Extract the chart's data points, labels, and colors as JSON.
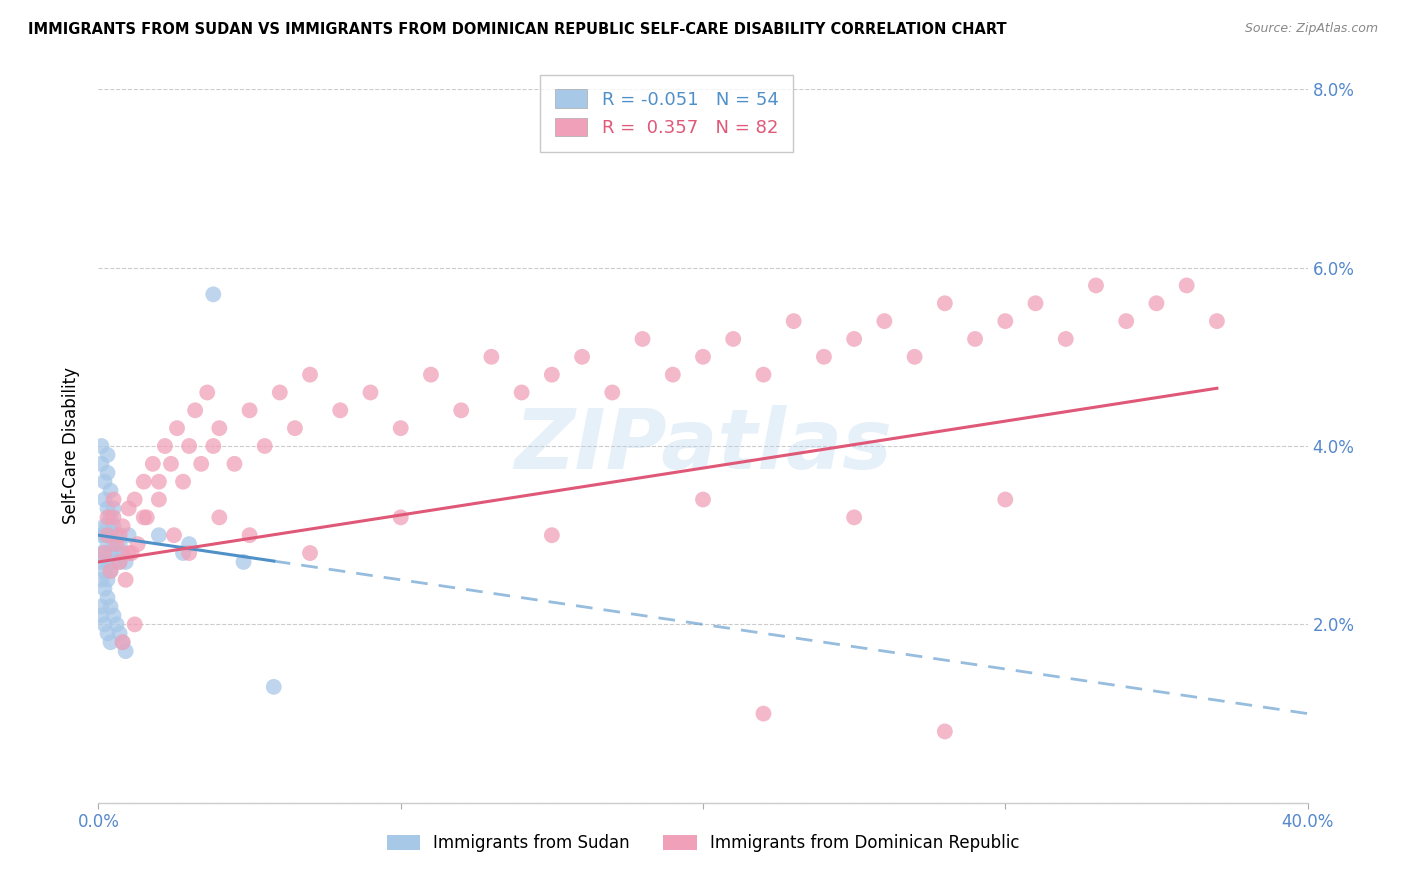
{
  "title": "IMMIGRANTS FROM SUDAN VS IMMIGRANTS FROM DOMINICAN REPUBLIC SELF-CARE DISABILITY CORRELATION CHART",
  "source": "Source: ZipAtlas.com",
  "ylabel": "Self-Care Disability",
  "right_yticklabels": [
    "",
    "2.0%",
    "4.0%",
    "6.0%",
    "8.0%"
  ],
  "xlim": [
    0.0,
    0.4
  ],
  "ylim": [
    0.0,
    0.08
  ],
  "sudan_R": -0.051,
  "sudan_N": 54,
  "dominican_R": 0.357,
  "dominican_N": 82,
  "sudan_color": "#a8c8e8",
  "dominican_color": "#f0a0b8",
  "sudan_line_color": "#5090c8",
  "dominican_line_color": "#e05878",
  "legend_sudan_label": "Immigrants from Sudan",
  "legend_dominican_label": "Immigrants from Dominican Republic",
  "watermark": "ZIPatlas",
  "background_color": "#ffffff",
  "grid_color": "#cccccc",
  "axis_color": "#5588cc",
  "sudan_x": [
    0.001,
    0.001,
    0.001,
    0.001,
    0.001,
    0.002,
    0.002,
    0.002,
    0.002,
    0.003,
    0.003,
    0.003,
    0.003,
    0.003,
    0.004,
    0.004,
    0.004,
    0.004,
    0.005,
    0.005,
    0.005,
    0.006,
    0.006,
    0.007,
    0.007,
    0.008,
    0.009,
    0.01,
    0.001,
    0.002,
    0.002,
    0.003,
    0.003,
    0.004,
    0.004,
    0.005,
    0.006,
    0.007,
    0.008,
    0.009,
    0.001,
    0.001,
    0.002,
    0.002,
    0.003,
    0.003,
    0.004,
    0.005,
    0.02,
    0.028,
    0.03,
    0.038,
    0.048,
    0.058
  ],
  "sudan_y": [
    0.03,
    0.028,
    0.027,
    0.025,
    0.022,
    0.031,
    0.03,
    0.028,
    0.026,
    0.033,
    0.031,
    0.029,
    0.027,
    0.025,
    0.032,
    0.03,
    0.028,
    0.026,
    0.031,
    0.029,
    0.027,
    0.03,
    0.028,
    0.029,
    0.027,
    0.028,
    0.027,
    0.03,
    0.021,
    0.024,
    0.02,
    0.023,
    0.019,
    0.022,
    0.018,
    0.021,
    0.02,
    0.019,
    0.018,
    0.017,
    0.04,
    0.038,
    0.036,
    0.034,
    0.037,
    0.039,
    0.035,
    0.033,
    0.03,
    0.028,
    0.029,
    0.057,
    0.027,
    0.013
  ],
  "dominican_x": [
    0.002,
    0.003,
    0.004,
    0.005,
    0.006,
    0.007,
    0.008,
    0.009,
    0.01,
    0.011,
    0.012,
    0.013,
    0.015,
    0.016,
    0.018,
    0.02,
    0.022,
    0.024,
    0.026,
    0.028,
    0.03,
    0.032,
    0.034,
    0.036,
    0.038,
    0.04,
    0.045,
    0.05,
    0.055,
    0.06,
    0.065,
    0.07,
    0.08,
    0.09,
    0.1,
    0.11,
    0.12,
    0.13,
    0.14,
    0.15,
    0.16,
    0.17,
    0.18,
    0.19,
    0.2,
    0.21,
    0.22,
    0.23,
    0.24,
    0.25,
    0.26,
    0.27,
    0.28,
    0.29,
    0.3,
    0.31,
    0.32,
    0.33,
    0.34,
    0.35,
    0.36,
    0.37,
    0.003,
    0.005,
    0.007,
    0.01,
    0.015,
    0.02,
    0.025,
    0.03,
    0.04,
    0.05,
    0.07,
    0.1,
    0.15,
    0.2,
    0.25,
    0.3,
    0.008,
    0.012,
    0.22,
    0.28
  ],
  "dominican_y": [
    0.028,
    0.03,
    0.026,
    0.032,
    0.029,
    0.027,
    0.031,
    0.025,
    0.033,
    0.028,
    0.034,
    0.029,
    0.036,
    0.032,
    0.038,
    0.036,
    0.04,
    0.038,
    0.042,
    0.036,
    0.04,
    0.044,
    0.038,
    0.046,
    0.04,
    0.042,
    0.038,
    0.044,
    0.04,
    0.046,
    0.042,
    0.048,
    0.044,
    0.046,
    0.042,
    0.048,
    0.044,
    0.05,
    0.046,
    0.048,
    0.05,
    0.046,
    0.052,
    0.048,
    0.05,
    0.052,
    0.048,
    0.054,
    0.05,
    0.052,
    0.054,
    0.05,
    0.056,
    0.052,
    0.054,
    0.056,
    0.052,
    0.058,
    0.054,
    0.056,
    0.058,
    0.054,
    0.032,
    0.034,
    0.03,
    0.028,
    0.032,
    0.034,
    0.03,
    0.028,
    0.032,
    0.03,
    0.028,
    0.032,
    0.03,
    0.034,
    0.032,
    0.034,
    0.018,
    0.02,
    0.01,
    0.008
  ]
}
